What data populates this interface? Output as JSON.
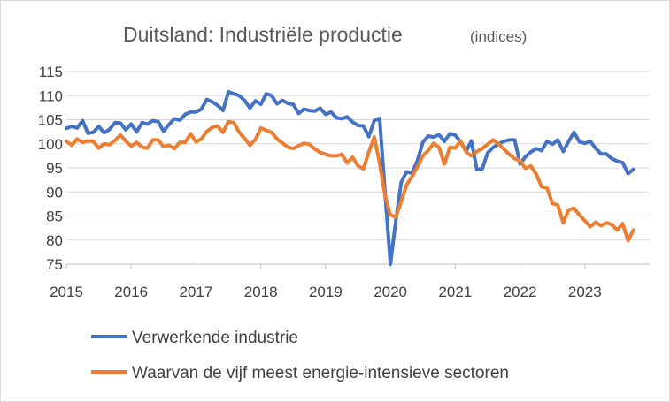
{
  "chart_data": {
    "type": "line",
    "title": "Duitsland: Industriële productie",
    "subtitle": "(indices)",
    "xlabel": "",
    "ylabel": "",
    "ylim": [
      75,
      115
    ],
    "yticks": [
      "115",
      "110",
      "105",
      "100",
      "95",
      "90",
      "85",
      "80",
      "75"
    ],
    "xlim": [
      2015,
      2024
    ],
    "xticks": [
      "2015",
      "2016",
      "2017",
      "2018",
      "2019",
      "2020",
      "2021",
      "2022",
      "2023"
    ],
    "grid": true,
    "legend_position": "bottom",
    "series": [
      {
        "name": "Verwerkende industrie",
        "color": "#4472c4",
        "points": [
          [
            2015.0,
            103.2
          ],
          [
            2015.083,
            103.6
          ],
          [
            2015.167,
            103.3
          ],
          [
            2015.25,
            104.8
          ],
          [
            2015.333,
            102.2
          ],
          [
            2015.417,
            102.4
          ],
          [
            2015.5,
            103.6
          ],
          [
            2015.583,
            102.3
          ],
          [
            2015.667,
            103.0
          ],
          [
            2015.75,
            104.4
          ],
          [
            2015.833,
            104.3
          ],
          [
            2015.917,
            102.9
          ],
          [
            2016.0,
            104.1
          ],
          [
            2016.083,
            102.5
          ],
          [
            2016.167,
            104.4
          ],
          [
            2016.25,
            104.1
          ],
          [
            2016.333,
            104.8
          ],
          [
            2016.417,
            104.6
          ],
          [
            2016.5,
            102.6
          ],
          [
            2016.583,
            104.0
          ],
          [
            2016.667,
            105.2
          ],
          [
            2016.75,
            104.9
          ],
          [
            2016.833,
            106.1
          ],
          [
            2016.917,
            106.6
          ],
          [
            2017.0,
            106.6
          ],
          [
            2017.083,
            107.2
          ],
          [
            2017.167,
            109.2
          ],
          [
            2017.25,
            108.7
          ],
          [
            2017.333,
            108.0
          ],
          [
            2017.417,
            106.9
          ],
          [
            2017.5,
            110.8
          ],
          [
            2017.583,
            110.4
          ],
          [
            2017.667,
            110.0
          ],
          [
            2017.75,
            109.0
          ],
          [
            2017.833,
            107.4
          ],
          [
            2017.917,
            108.9
          ],
          [
            2018.0,
            108.2
          ],
          [
            2018.083,
            110.4
          ],
          [
            2018.167,
            110.0
          ],
          [
            2018.25,
            108.3
          ],
          [
            2018.333,
            109.0
          ],
          [
            2018.417,
            108.4
          ],
          [
            2018.5,
            108.2
          ],
          [
            2018.583,
            106.3
          ],
          [
            2018.667,
            107.2
          ],
          [
            2018.75,
            106.9
          ],
          [
            2018.833,
            106.8
          ],
          [
            2018.917,
            107.4
          ],
          [
            2019.0,
            106.1
          ],
          [
            2019.083,
            106.6
          ],
          [
            2019.167,
            105.4
          ],
          [
            2019.25,
            105.2
          ],
          [
            2019.333,
            105.6
          ],
          [
            2019.417,
            104.5
          ],
          [
            2019.5,
            103.8
          ],
          [
            2019.583,
            103.7
          ],
          [
            2019.667,
            101.5
          ],
          [
            2019.75,
            104.8
          ],
          [
            2019.833,
            105.3
          ],
          [
            2019.917,
            90.0
          ],
          [
            2020.0,
            75.0
          ],
          [
            2020.083,
            84.0
          ],
          [
            2020.167,
            92.0
          ],
          [
            2020.25,
            94.2
          ],
          [
            2020.333,
            93.9
          ],
          [
            2020.417,
            96.5
          ],
          [
            2020.5,
            100.3
          ],
          [
            2020.583,
            101.6
          ],
          [
            2020.667,
            101.4
          ],
          [
            2020.75,
            101.9
          ],
          [
            2020.833,
            100.5
          ],
          [
            2020.917,
            102.1
          ],
          [
            2021.0,
            101.8
          ],
          [
            2021.083,
            100.4
          ],
          [
            2021.167,
            98.4
          ],
          [
            2021.25,
            100.6
          ],
          [
            2021.333,
            94.7
          ],
          [
            2021.417,
            94.8
          ],
          [
            2021.5,
            98.1
          ],
          [
            2021.583,
            99.2
          ],
          [
            2021.667,
            100.0
          ],
          [
            2021.75,
            100.5
          ],
          [
            2021.833,
            100.8
          ],
          [
            2021.917,
            100.8
          ],
          [
            2022.0,
            95.8
          ],
          [
            2022.083,
            97.3
          ],
          [
            2022.167,
            98.3
          ],
          [
            2022.25,
            99.0
          ],
          [
            2022.333,
            98.6
          ],
          [
            2022.417,
            100.5
          ],
          [
            2022.5,
            99.9
          ],
          [
            2022.583,
            100.8
          ],
          [
            2022.667,
            98.4
          ],
          [
            2022.75,
            100.5
          ],
          [
            2022.833,
            102.4
          ],
          [
            2022.917,
            100.4
          ],
          [
            2023.0,
            100.1
          ],
          [
            2023.083,
            100.5
          ],
          [
            2023.167,
            99.1
          ],
          [
            2023.25,
            97.9
          ],
          [
            2023.333,
            97.9
          ],
          [
            2023.417,
            96.9
          ],
          [
            2023.5,
            96.4
          ],
          [
            2023.583,
            96.1
          ],
          [
            2023.667,
            93.8
          ],
          [
            2023.75,
            94.7
          ]
        ]
      },
      {
        "name": "Waarvan de vijf meest energie-intensieve sectoren",
        "color": "#ed7d31",
        "points": [
          [
            2015.0,
            100.5
          ],
          [
            2015.083,
            99.7
          ],
          [
            2015.167,
            101.0
          ],
          [
            2015.25,
            100.3
          ],
          [
            2015.333,
            100.6
          ],
          [
            2015.417,
            100.5
          ],
          [
            2015.5,
            99.1
          ],
          [
            2015.583,
            100.0
          ],
          [
            2015.667,
            99.8
          ],
          [
            2015.75,
            100.7
          ],
          [
            2015.833,
            101.8
          ],
          [
            2015.917,
            100.6
          ],
          [
            2016.0,
            99.5
          ],
          [
            2016.083,
            100.3
          ],
          [
            2016.167,
            99.3
          ],
          [
            2016.25,
            99.1
          ],
          [
            2016.333,
            100.8
          ],
          [
            2016.417,
            100.8
          ],
          [
            2016.5,
            99.4
          ],
          [
            2016.583,
            99.7
          ],
          [
            2016.667,
            99.0
          ],
          [
            2016.75,
            100.3
          ],
          [
            2016.833,
            100.3
          ],
          [
            2016.917,
            102.1
          ],
          [
            2017.0,
            100.4
          ],
          [
            2017.083,
            101.0
          ],
          [
            2017.167,
            102.6
          ],
          [
            2017.25,
            103.4
          ],
          [
            2017.333,
            103.7
          ],
          [
            2017.417,
            102.4
          ],
          [
            2017.5,
            104.6
          ],
          [
            2017.583,
            104.4
          ],
          [
            2017.667,
            102.4
          ],
          [
            2017.75,
            101.1
          ],
          [
            2017.833,
            99.7
          ],
          [
            2017.917,
            100.9
          ],
          [
            2018.0,
            103.3
          ],
          [
            2018.083,
            102.8
          ],
          [
            2018.167,
            102.4
          ],
          [
            2018.25,
            101.0
          ],
          [
            2018.333,
            100.2
          ],
          [
            2018.417,
            99.3
          ],
          [
            2018.5,
            99.0
          ],
          [
            2018.583,
            99.6
          ],
          [
            2018.667,
            100.1
          ],
          [
            2018.75,
            99.9
          ],
          [
            2018.833,
            98.9
          ],
          [
            2018.917,
            98.2
          ],
          [
            2019.0,
            97.8
          ],
          [
            2019.083,
            97.5
          ],
          [
            2019.167,
            97.5
          ],
          [
            2019.25,
            97.8
          ],
          [
            2019.333,
            96.0
          ],
          [
            2019.417,
            97.2
          ],
          [
            2019.5,
            95.4
          ],
          [
            2019.583,
            94.8
          ],
          [
            2019.667,
            98.3
          ],
          [
            2019.75,
            101.4
          ],
          [
            2019.833,
            96.0
          ],
          [
            2019.917,
            89.3
          ],
          [
            2020.0,
            85.2
          ],
          [
            2020.083,
            84.8
          ],
          [
            2020.167,
            88.0
          ],
          [
            2020.25,
            91.5
          ],
          [
            2020.333,
            93.2
          ],
          [
            2020.417,
            95.2
          ],
          [
            2020.5,
            97.5
          ],
          [
            2020.583,
            98.6
          ],
          [
            2020.667,
            100.1
          ],
          [
            2020.75,
            99.3
          ],
          [
            2020.833,
            95.8
          ],
          [
            2020.917,
            99.3
          ],
          [
            2021.0,
            99.1
          ],
          [
            2021.083,
            100.6
          ],
          [
            2021.167,
            98.3
          ],
          [
            2021.25,
            97.5
          ],
          [
            2021.333,
            98.4
          ],
          [
            2021.417,
            99.0
          ],
          [
            2021.5,
            99.9
          ],
          [
            2021.583,
            100.8
          ],
          [
            2021.667,
            100.0
          ],
          [
            2021.75,
            98.9
          ],
          [
            2021.833,
            97.8
          ],
          [
            2021.917,
            96.9
          ],
          [
            2022.0,
            96.5
          ],
          [
            2022.083,
            94.9
          ],
          [
            2022.167,
            95.4
          ],
          [
            2022.25,
            93.7
          ],
          [
            2022.333,
            91.1
          ],
          [
            2022.417,
            90.8
          ],
          [
            2022.5,
            87.6
          ],
          [
            2022.583,
            87.3
          ],
          [
            2022.667,
            83.6
          ],
          [
            2022.75,
            86.3
          ],
          [
            2022.833,
            86.6
          ],
          [
            2022.917,
            85.2
          ],
          [
            2023.0,
            84.0
          ],
          [
            2023.083,
            82.8
          ],
          [
            2023.167,
            83.7
          ],
          [
            2023.25,
            83.0
          ],
          [
            2023.333,
            83.6
          ],
          [
            2023.417,
            83.2
          ],
          [
            2023.5,
            82.1
          ],
          [
            2023.583,
            83.4
          ],
          [
            2023.667,
            79.9
          ],
          [
            2023.75,
            82.1
          ]
        ]
      }
    ]
  }
}
